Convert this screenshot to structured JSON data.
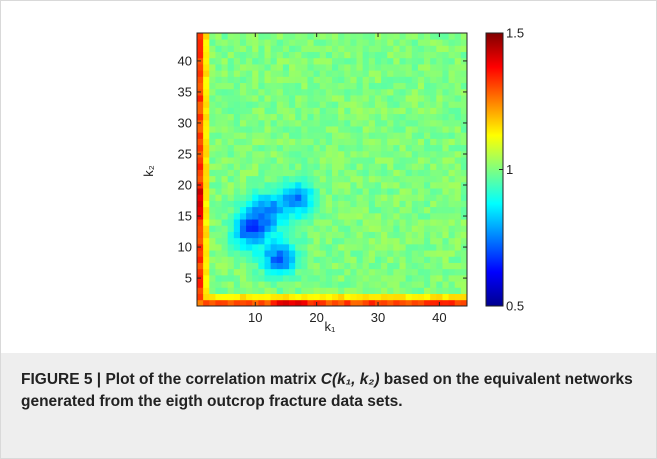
{
  "caption": {
    "label": "FIGURE 5 | ",
    "text_before": "Plot of the correlation matrix ",
    "math": "C(k₁, k₂)",
    "text_after": " based on the equivalent networks generated from the eigth outcrop fracture data sets."
  },
  "chart_data": {
    "type": "heatmap",
    "xlabel": "k₁",
    "ylabel": "k₂",
    "xlim": [
      0.5,
      44.5
    ],
    "ylim": [
      0.5,
      44.5
    ],
    "x_ticks": [
      10,
      20,
      30,
      40
    ],
    "y_ticks": [
      5,
      10,
      15,
      20,
      25,
      30,
      35,
      40
    ],
    "colorbar": {
      "min": 0.5,
      "max": 1.5,
      "ticks": [
        0.5,
        1,
        1.5
      ],
      "tick_labels": [
        "0.5",
        "1",
        "1.5"
      ],
      "colormap": "jet"
    },
    "grid_size": [
      44,
      44
    ],
    "background_value": 1.0,
    "features": [
      {
        "region": "k1 = 1",
        "k2_range": [
          1,
          44
        ],
        "value": 1.3,
        "peak": {
          "k2": 17,
          "value": 1.42
        }
      },
      {
        "region": "k2 = 1",
        "k1_range": [
          1,
          44
        ],
        "value": 1.3,
        "peak": {
          "k1": 16,
          "value": 1.43
        }
      },
      {
        "region": "low-correlation cluster",
        "k1_range": [
          5,
          20
        ],
        "k2_range": [
          5,
          24
        ],
        "value": 0.8,
        "minima": [
          {
            "k1": 9,
            "k2": 13,
            "value": 0.74
          },
          {
            "k1": 14,
            "k2": 8,
            "value": 0.74
          },
          {
            "k1": 17,
            "k2": 18,
            "value": 0.76
          },
          {
            "k1": 12,
            "k2": 16,
            "value": 0.8
          }
        ]
      }
    ],
    "colors": {
      "low": "#00008f",
      "high": "#800000"
    }
  }
}
